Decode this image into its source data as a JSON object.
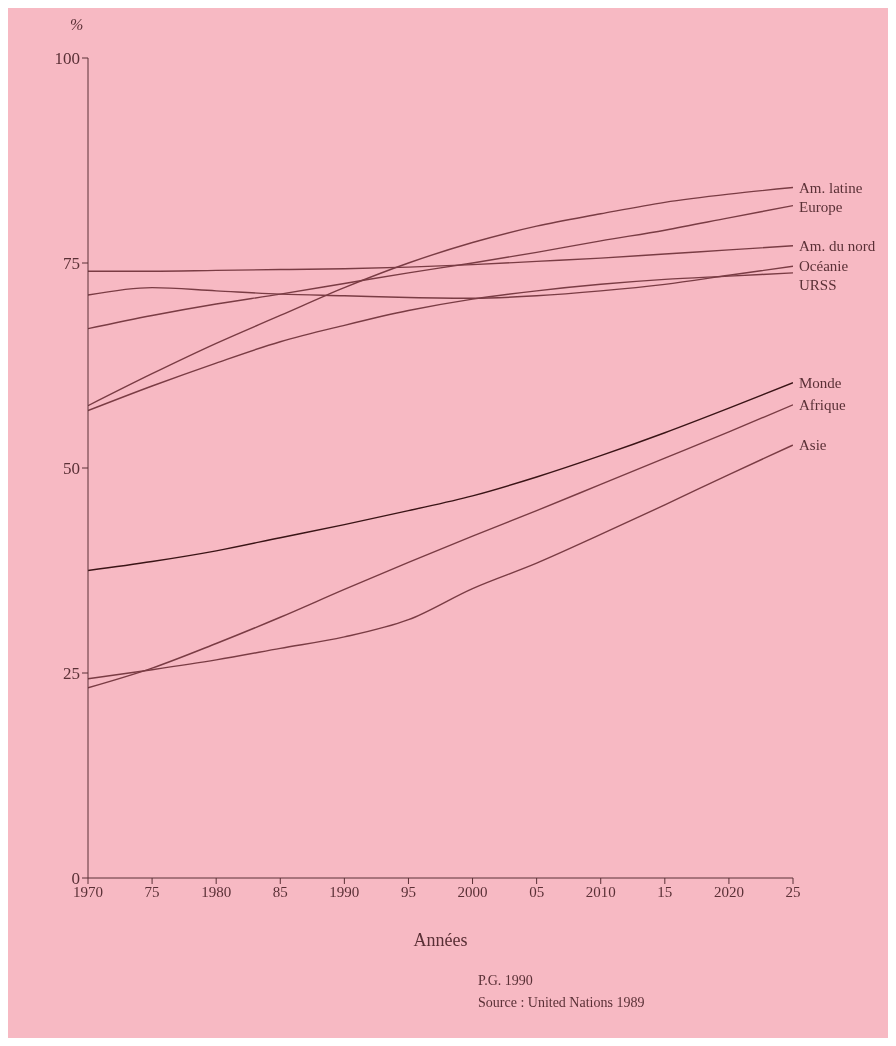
{
  "chart_data": {
    "type": "line",
    "ylabel": "%",
    "xlabel": "Années",
    "x": [
      1970,
      1975,
      1980,
      1985,
      1990,
      1995,
      2000,
      2005,
      2010,
      2015,
      2020,
      2025
    ],
    "xlim": [
      1970,
      2025
    ],
    "xticks": [
      1970,
      {
        "value": 1975,
        "label": "75"
      },
      1980,
      {
        "value": 1985,
        "label": "85"
      },
      1990,
      {
        "value": 1995,
        "label": "95"
      },
      2000,
      {
        "value": 2005,
        "label": "05"
      },
      2010,
      {
        "value": 2015,
        "label": "15"
      },
      2020,
      {
        "value": 2025,
        "label": "25"
      }
    ],
    "ylim": [
      0,
      100
    ],
    "yticks": [
      0,
      25,
      50,
      75,
      100
    ],
    "grid": false,
    "legend": false,
    "marker": "none",
    "line_style": "solid",
    "series": [
      {
        "name": "Am. latine",
        "color": "#7a3c44",
        "values": [
          57.6,
          61.5,
          65.2,
          68.6,
          72,
          75,
          77.5,
          79.5,
          81,
          82.4,
          83.4,
          84.2
        ]
      },
      {
        "name": "Europe",
        "color": "#7a3c44",
        "values": [
          67,
          68.6,
          70,
          71.2,
          72.5,
          73.8,
          75,
          76.3,
          77.7,
          79,
          80.5,
          82
        ]
      },
      {
        "name": "Am. du nord",
        "color": "#7a3c44",
        "values": [
          74,
          74,
          74.1,
          74.2,
          74.3,
          74.5,
          74.8,
          75.2,
          75.6,
          76.1,
          76.6,
          77.1
        ]
      },
      {
        "name": "Océanie",
        "color": "#7a3c44",
        "values": [
          71.1,
          72,
          71.6,
          71.2,
          71,
          70.8,
          70.7,
          71,
          71.6,
          72.4,
          73.5,
          74.6
        ]
      },
      {
        "name": "URSS",
        "color": "#7a3c44",
        "values": [
          57,
          60,
          62.8,
          65.4,
          67.4,
          69.2,
          70.6,
          71.6,
          72.4,
          73,
          73.4,
          73.8
        ]
      },
      {
        "name": "Monde",
        "color": "#3a1416",
        "values": [
          37.5,
          38.6,
          39.9,
          41.5,
          43.1,
          44.8,
          46.6,
          48.9,
          51.5,
          54.3,
          57.3,
          60.4
        ]
      },
      {
        "name": "Afrique",
        "color": "#7a3c44",
        "values": [
          23.2,
          25.6,
          28.6,
          31.8,
          35.2,
          38.5,
          41.7,
          44.8,
          48,
          51.2,
          54.4,
          57.7
        ]
      },
      {
        "name": "Asie",
        "color": "#7a3c44",
        "values": [
          24.3,
          25.4,
          26.6,
          28,
          29.4,
          31.5,
          35.3,
          38.4,
          41.9,
          45.5,
          49.2,
          52.8
        ]
      }
    ],
    "annotations": [
      "P.G. 1990",
      "Source : United Nations 1989"
    ]
  }
}
